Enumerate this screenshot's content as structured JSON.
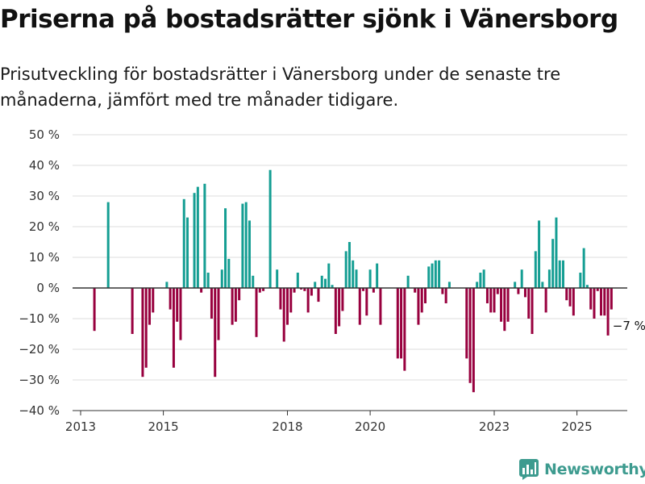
{
  "title": "Priserna på bostadsrätter sjönk i Vänersborg",
  "subtitle": "Prisutveckling för bostadsrätter i Vänersborg under de senaste tre månaderna, jämfört med tre månader tidigare.",
  "brand": "Newsworthy",
  "colors": {
    "positive": "#159e93",
    "negative": "#98003e",
    "grid": "#dddddd",
    "axis": "#333333"
  },
  "chart_data": {
    "type": "bar",
    "x_unit": "month",
    "x_start": "2013-05",
    "values": [
      -14,
      null,
      null,
      null,
      28,
      null,
      null,
      null,
      null,
      null,
      null,
      -15,
      null,
      null,
      -29,
      -26,
      -12,
      -8,
      null,
      null,
      null,
      2,
      -7,
      -26,
      -11,
      -17,
      29,
      23,
      null,
      31,
      33,
      -1.5,
      34,
      5,
      -10,
      -29,
      -17,
      6,
      26,
      9.5,
      -12,
      -11,
      -4,
      27.5,
      28,
      22,
      4,
      -16,
      -1.5,
      -1,
      null,
      38.5,
      null,
      6,
      -7,
      -17.5,
      -12,
      -8,
      -1.5,
      5,
      -0.5,
      -1,
      -8,
      -2.5,
      2,
      -4.5,
      4,
      3,
      8,
      1,
      -15,
      -12.5,
      -7.5,
      12,
      15,
      9,
      6,
      -12,
      -1,
      -9,
      6,
      -1.5,
      8,
      -12,
      null,
      null,
      null,
      null,
      -23,
      -23,
      -27,
      4,
      null,
      -1.5,
      -12,
      -8,
      -5,
      7,
      8,
      9,
      9,
      -2,
      -5,
      2,
      null,
      null,
      null,
      null,
      -23,
      -31,
      -34,
      2,
      5,
      6,
      -5,
      -8,
      -8,
      -2,
      -11,
      -14,
      -11,
      null,
      2,
      -2,
      6,
      -3,
      -10,
      -15,
      12,
      22,
      2,
      -8,
      6,
      16,
      23,
      9,
      9,
      -4,
      -6,
      -9,
      null,
      5,
      13,
      1,
      -7,
      -10,
      -1,
      -9,
      -9,
      -15.5,
      -7
    ],
    "annotation": "−7 %",
    "y_ticks": [
      "50 %",
      "40 %",
      "30 %",
      "20 %",
      "10 %",
      "0 %",
      "−10 %",
      "−20 %",
      "−30 %",
      "−40 %"
    ],
    "x_ticks": [
      "2013",
      "2015",
      "2018",
      "2020",
      "2023",
      "2025"
    ],
    "ylim": [
      -40,
      50
    ],
    "grid": true,
    "legend": "none"
  }
}
